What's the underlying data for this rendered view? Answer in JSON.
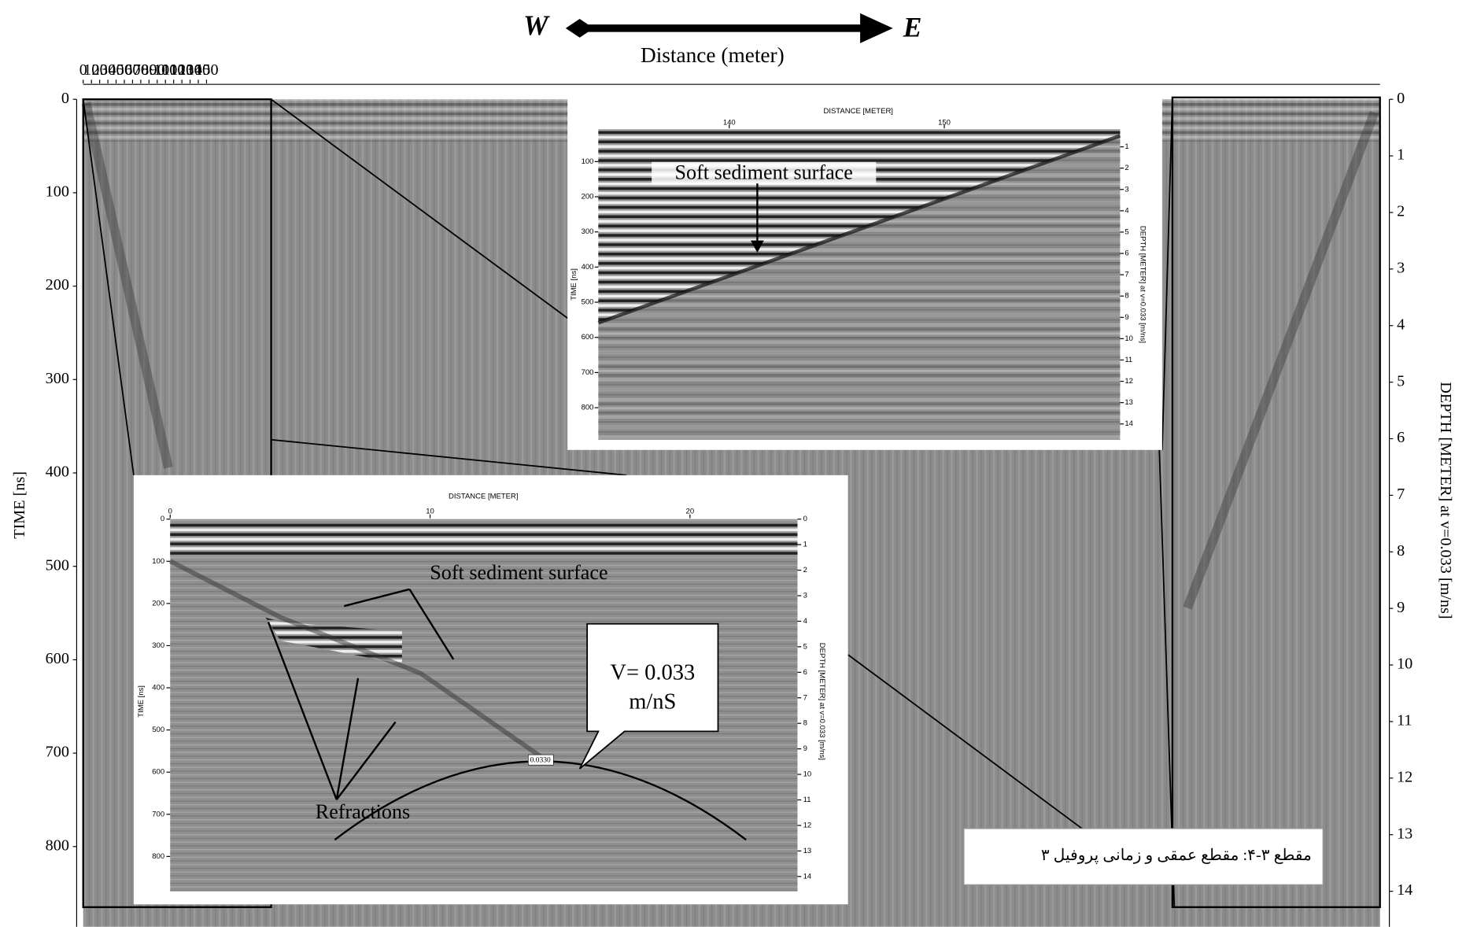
{
  "header": {
    "west": "W",
    "east": "E",
    "x_label": "Distance (meter)"
  },
  "axes": {
    "x_ticks": [
      0,
      10,
      20,
      30,
      40,
      50,
      60,
      70,
      80,
      90,
      100,
      110,
      120,
      130,
      140,
      150
    ],
    "time_label": "TIME [ns]",
    "time_ticks": [
      0,
      100,
      200,
      300,
      400,
      500,
      600,
      700,
      800
    ],
    "depth_label": "DEPTH [METER] at v=0.033 [m/ns]",
    "depth_ticks": [
      0,
      1,
      2,
      3,
      4,
      5,
      6,
      7,
      8,
      9,
      10,
      11,
      12,
      13,
      14
    ]
  },
  "inset_right": {
    "x_label": "DISTANCE [METER]",
    "x_ticks": [
      140,
      150
    ],
    "time_label": "TIME [ns]",
    "time_ticks": [
      100,
      200,
      300,
      400,
      500,
      600,
      700,
      800
    ],
    "depth_label": "DEPTH [METER] at v=0.033 [m/ns]",
    "depth_ticks": [
      1,
      2,
      3,
      4,
      5,
      6,
      7,
      8,
      9,
      10,
      11,
      12,
      13,
      14
    ],
    "annotation": "Soft sediment surface"
  },
  "inset_left": {
    "x_label": "DISTANCE [METER]",
    "x_ticks": [
      0,
      10,
      20
    ],
    "time_label": "TIME [ns]",
    "time_ticks": [
      0,
      100,
      200,
      300,
      400,
      500,
      600,
      700,
      800
    ],
    "depth_label": "DEPTH [METER] at v=0.033 [m/ns]",
    "depth_ticks": [
      0,
      1,
      2,
      3,
      4,
      5,
      6,
      7,
      8,
      9,
      10,
      11,
      12,
      13,
      14
    ],
    "annotation_surface": "Soft sediment surface",
    "annotation_refractions": "Refractions",
    "velocity_label": [
      "V= 0.033",
      "m/nS"
    ],
    "hyperbola_label": "0.0330"
  },
  "caption": "مقطع ۳-۴: مقطع عمقی و زمانی پروفیل ۳"
}
